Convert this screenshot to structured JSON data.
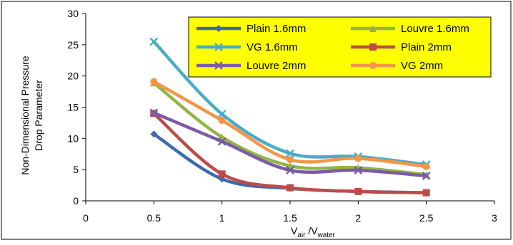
{
  "chart_data": {
    "type": "line",
    "title": "",
    "ylabel_lines": [
      "Non-Dimensional Pressure",
      "Drop Parameter"
    ],
    "xlabel": {
      "v": "V",
      "air": "air",
      "slash": " /V",
      "water": "water"
    },
    "xlim": [
      0,
      3
    ],
    "ylim": [
      0,
      30
    ],
    "x_ticks": [
      "0",
      "0.5",
      "1",
      "1.5",
      "2",
      "2.5",
      "3"
    ],
    "y_ticks": [
      "0",
      "5",
      "10",
      "15",
      "20",
      "25",
      "30"
    ],
    "grid": false,
    "legend_position": "top-right",
    "legend_background": "#ffff00",
    "x": [
      0.5,
      1,
      1.5,
      2,
      2.5
    ],
    "series": [
      {
        "name": "Plain 1.6mm",
        "color": "#3d6aac",
        "marker": "diamond",
        "values": [
          10.7,
          3.5,
          2.0,
          1.5,
          1.3
        ]
      },
      {
        "name": "Louvre 1.6mm",
        "color": "#93b546",
        "marker": "triangle",
        "values": [
          18.9,
          10.2,
          5.6,
          5.3,
          4.2
        ]
      },
      {
        "name": "VG 1.6mm",
        "color": "#4aabc5",
        "marker": "x",
        "values": [
          25.5,
          13.9,
          7.6,
          7.1,
          5.8
        ]
      },
      {
        "name": "Plain 2mm",
        "color": "#be4b48",
        "marker": "square",
        "values": [
          14.0,
          4.3,
          2.1,
          1.5,
          1.3
        ]
      },
      {
        "name": "Louvre 2mm",
        "color": "#7b5ba6",
        "marker": "x",
        "values": [
          14.1,
          9.5,
          4.9,
          4.9,
          4.0
        ]
      },
      {
        "name": "VG 2mm",
        "color": "#f69546",
        "marker": "circle",
        "values": [
          19.1,
          12.9,
          6.6,
          6.8,
          5.5
        ]
      }
    ]
  }
}
